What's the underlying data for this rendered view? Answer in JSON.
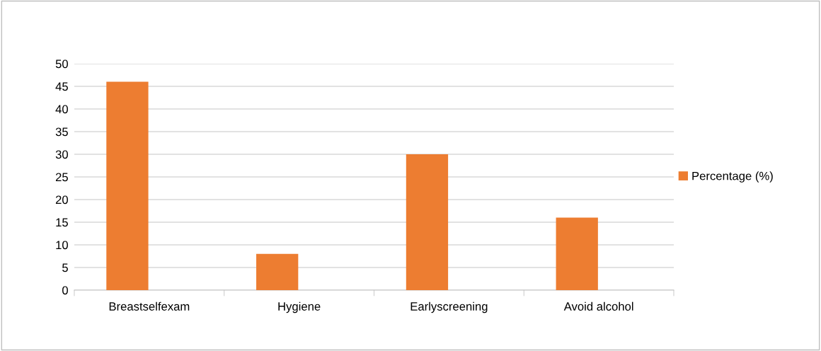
{
  "chart_data": {
    "type": "bar",
    "categories": [
      "Breastselfexam",
      "Hygiene",
      "Earlyscreening",
      "Avoid alcohol"
    ],
    "series": [
      {
        "name": "Percentage (%)",
        "color": "#ed7d31",
        "values": [
          46,
          8,
          30,
          16
        ]
      }
    ],
    "ylim": [
      0,
      50
    ],
    "yticks": [
      0,
      5,
      10,
      15,
      20,
      25,
      30,
      35,
      40,
      45,
      50
    ],
    "grid": "y",
    "legend": "right"
  }
}
